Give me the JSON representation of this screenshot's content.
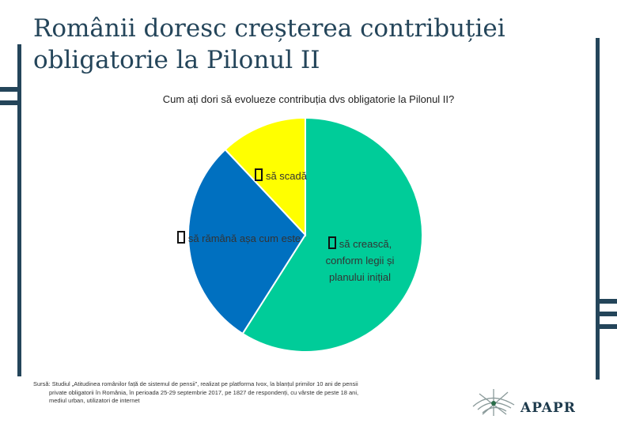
{
  "slide": {
    "title": "Românii doresc creșterea contribuției obligatorie la Pilonul II",
    "source_line1": "Sursă: Studiul „Atitudinea românilor față de sistemul de pensii”, realizat pe platforma Ivox, la blanțul primilor 10 ani de pensii",
    "source_line2": "private obligatorii în România, în perioada 25-29 septembrie 2017, pe 1827 de respondenți, cu vârste de peste 18 ani,",
    "source_line3": "mediul urban, utilizatori de internet",
    "logo_text": "APAPR"
  },
  "chart_data": {
    "type": "pie",
    "title": "Cum ați dori să evolueze contribuția dvs obligatorie la Pilonul II?",
    "start_angle_deg": 0,
    "slices": [
      {
        "label": "să crească, conform legii și planului inițial",
        "value": 59,
        "color": "#00cc99"
      },
      {
        "label": "să rămână așa cum este",
        "value": 29,
        "color": "#0070c0"
      },
      {
        "label": "să scadă",
        "value": 12,
        "color": "#ffff00"
      }
    ]
  },
  "colors": {
    "accent": "#24455a",
    "slice_border": "#ffffff"
  }
}
